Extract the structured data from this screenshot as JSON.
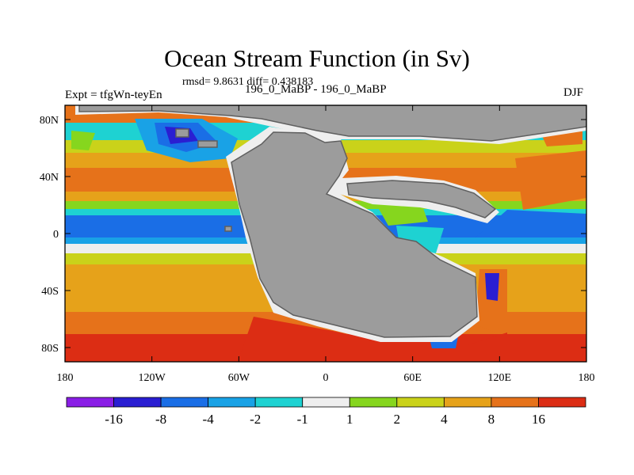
{
  "header": {
    "title": "Ocean Stream Function (in Sv)",
    "stats": "rmsd= 9.8631 diff= 0.438183",
    "experiment": "Expt = tfgWn-teyEn",
    "case": "196_0_MaBP - 196_0_MaBP",
    "season": "DJF"
  },
  "map": {
    "lon_range": [
      -180,
      180
    ],
    "lat_range": [
      -90,
      90
    ],
    "x_ticks": [
      {
        "lon": -180,
        "label": "180"
      },
      {
        "lon": -120,
        "label": "120W"
      },
      {
        "lon": -60,
        "label": "60W"
      },
      {
        "lon": 0,
        "label": "0"
      },
      {
        "lon": 60,
        "label": "60E"
      },
      {
        "lon": 120,
        "label": "120E"
      },
      {
        "lon": 180,
        "label": "180"
      }
    ],
    "y_ticks": [
      {
        "lat": 80,
        "label": "80N"
      },
      {
        "lat": 40,
        "label": "40N"
      },
      {
        "lat": 0,
        "label": "0"
      },
      {
        "lat": -40,
        "label": "40S"
      },
      {
        "lat": -80,
        "label": "80S"
      }
    ],
    "land_color": "#9c9c9c"
  },
  "colorbar": {
    "colors": [
      "#8a1ee6",
      "#2a1ed2",
      "#1a6ee6",
      "#19a2e6",
      "#1ed2d2",
      "#eeeeee",
      "#86d61e",
      "#cad21a",
      "#e6a21a",
      "#e6721a",
      "#dc2d14"
    ],
    "labels": [
      "-16",
      "-8",
      "-4",
      "-2",
      "-1",
      "1",
      "2",
      "4",
      "8",
      "16"
    ]
  }
}
